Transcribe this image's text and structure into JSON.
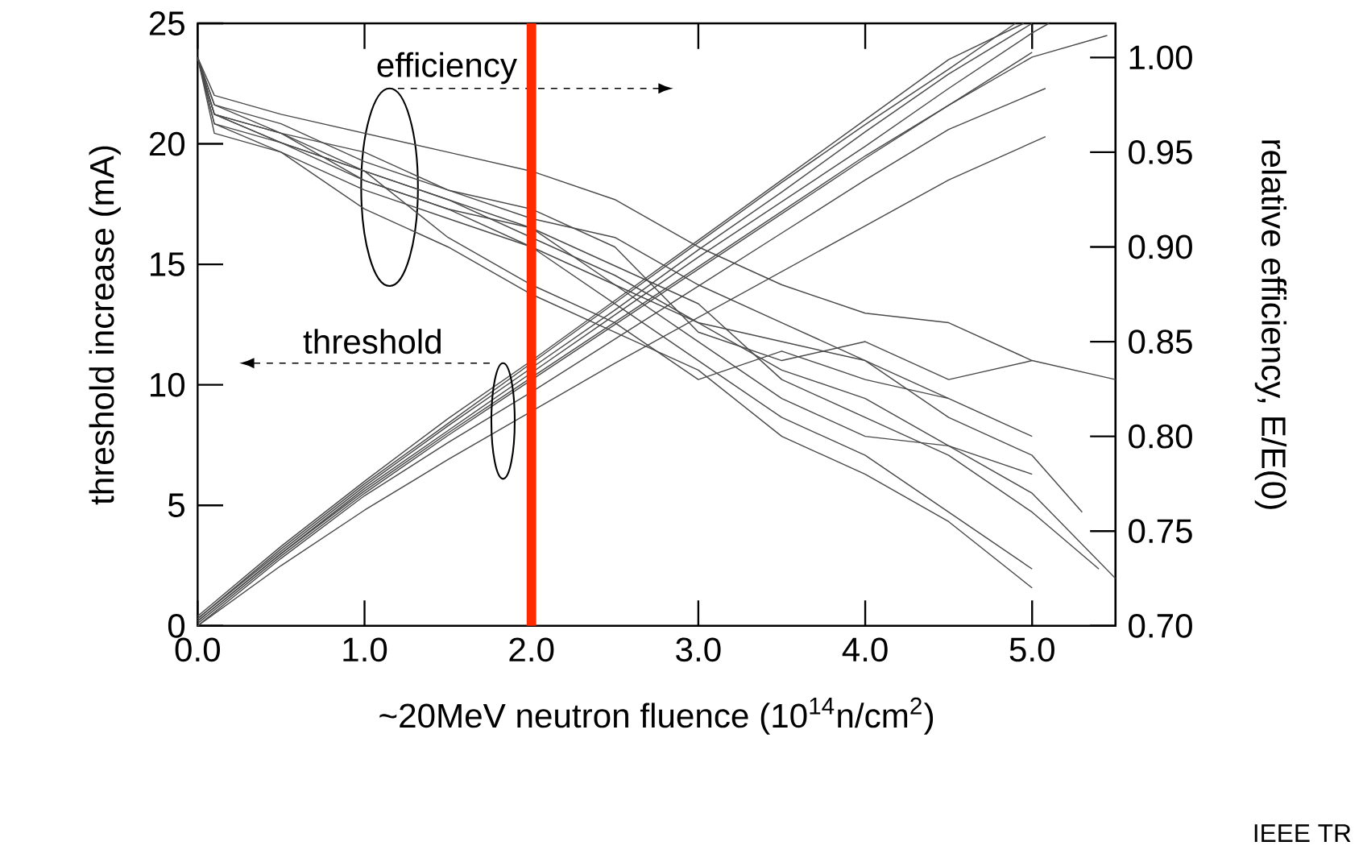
{
  "chart_data": {
    "type": "line",
    "xlabel": "~20MeV neutron fluence (10$^{14}$n/cm$^{2}$)",
    "ylabel": "threshold increase (mA)",
    "y2label": "relative efficiency, E/E(0)",
    "xlim": [
      0,
      5.5
    ],
    "ylim": [
      0,
      25
    ],
    "y2lim": [
      0.7,
      1.018
    ],
    "xticks": [
      {
        "value": 0,
        "label": "0.0"
      },
      {
        "value": 1,
        "label": "1.0"
      },
      {
        "value": 2,
        "label": "2.0"
      },
      {
        "value": 3,
        "label": "3.0"
      },
      {
        "value": 4,
        "label": "4.0"
      },
      {
        "value": 5,
        "label": "5.0"
      }
    ],
    "yticks": [
      0,
      5,
      10,
      15,
      20,
      25
    ],
    "y2ticks": [
      {
        "value": 0.7,
        "label": "0.70"
      },
      {
        "value": 0.75,
        "label": "0.75"
      },
      {
        "value": 0.8,
        "label": "0.80"
      },
      {
        "value": 0.85,
        "label": "0.85"
      },
      {
        "value": 0.9,
        "label": "0.90"
      },
      {
        "value": 0.95,
        "label": "0.95"
      },
      {
        "value": 1.0,
        "label": "1.00"
      }
    ],
    "annotations": [
      "threshold",
      "efficiency",
      "IEEE TR"
    ],
    "ref_lines": [
      {
        "axis": "x",
        "value": 2.0,
        "color": "#ff2a00"
      }
    ],
    "series": [
      {
        "color": "#4a4a4a",
        "x": [
          0,
          0.5,
          1,
          1.5,
          2,
          2.5,
          3,
          3.5,
          4,
          4.5,
          4.9
        ],
        "values": [
          0.3,
          3.2,
          5.9,
          8.4,
          10.9,
          13.4,
          15.9,
          18.4,
          20.8,
          23.1,
          25
        ]
      },
      {
        "color": "#4a4a4a",
        "x": [
          0,
          0.5,
          1,
          1.5,
          2,
          2.5,
          3,
          3.5,
          4,
          4.5,
          5,
          5.1
        ],
        "values": [
          0.2,
          3.0,
          5.7,
          8.1,
          10.5,
          12.9,
          15.3,
          17.6,
          19.9,
          22.3,
          24.6,
          25
        ]
      },
      {
        "color": "#4a4a4a",
        "x": [
          0,
          0.5,
          1,
          1.5,
          2,
          2.5,
          3,
          3.5,
          4,
          4.5,
          5
        ],
        "values": [
          0.1,
          2.9,
          5.5,
          7.9,
          10.2,
          12.5,
          14.8,
          17.1,
          19.4,
          21.6,
          23.8
        ]
      },
      {
        "color": "#4a4a4a",
        "x": [
          0,
          0.5,
          1,
          1.5,
          2,
          2.5,
          3,
          3.5,
          4,
          4.5,
          5.08
        ],
        "values": [
          0,
          2.5,
          4.8,
          6.9,
          8.9,
          10.9,
          12.8,
          14.7,
          16.6,
          18.5,
          20.3
        ]
      },
      {
        "color": "#4a4a4a",
        "x": [
          0,
          0.5,
          1,
          1.5,
          2,
          2.5,
          3,
          3.5,
          4,
          4.5,
          5.08
        ],
        "values": [
          0,
          2.8,
          5.4,
          7.6,
          9.7,
          11.9,
          14.1,
          16.3,
          18.5,
          20.6,
          22.3
        ]
      },
      {
        "color": "#4a4a4a",
        "x": [
          0,
          0.5,
          1,
          1.5,
          2,
          2.5,
          3,
          3.5,
          4,
          4.5,
          4.95
        ],
        "values": [
          0.4,
          3.3,
          6.0,
          8.6,
          11.0,
          13.5,
          16.0,
          18.5,
          21.0,
          23.5,
          25
        ]
      },
      {
        "color": "#4a4a4a",
        "x": [
          0,
          0.5,
          1,
          1.5,
          2,
          2.5,
          3,
          3.5,
          4,
          4.5,
          5,
          5.45
        ],
        "values": [
          0.2,
          3.0,
          5.6,
          8.0,
          10.3,
          12.6,
          14.9,
          17.2,
          19.5,
          21.6,
          23.6,
          24.5
        ]
      },
      {
        "color": "#4a4a4a",
        "x": [
          0,
          0.5,
          1,
          1.5,
          2,
          2.5,
          3,
          3.5,
          4,
          4.5,
          5
        ],
        "values": [
          0.3,
          3.1,
          5.8,
          8.3,
          10.7,
          13.1,
          15.6,
          18.0,
          20.5,
          22.9,
          25
        ]
      },
      {
        "color": "#4a4a4a",
        "axis": "y2",
        "x": [
          0,
          0.1,
          0.5,
          1,
          1.5,
          2,
          2.5,
          3,
          3.5,
          4,
          4.5,
          5,
          5.3
        ],
        "values": [
          1.0,
          0.975,
          0.965,
          0.945,
          0.93,
          0.915,
          0.905,
          0.88,
          0.86,
          0.84,
          0.81,
          0.79,
          0.76
        ]
      },
      {
        "color": "#4a4a4a",
        "axis": "y2",
        "x": [
          0,
          0.1,
          0.5,
          1,
          1.5,
          2,
          2.5,
          3,
          3.5,
          4,
          4.5,
          5,
          5.4
        ],
        "values": [
          1.0,
          0.97,
          0.955,
          0.935,
          0.92,
          0.91,
          0.89,
          0.87,
          0.83,
          0.81,
          0.79,
          0.76,
          0.73
        ]
      },
      {
        "color": "#4a4a4a",
        "axis": "y2",
        "x": [
          0,
          0.1,
          0.5,
          1,
          1.5,
          2,
          2.5,
          3,
          3.5,
          4,
          4.5,
          5,
          5.5
        ],
        "values": [
          1.0,
          0.98,
          0.97,
          0.96,
          0.95,
          0.94,
          0.925,
          0.9,
          0.88,
          0.865,
          0.86,
          0.84,
          0.83
        ]
      },
      {
        "color": "#4a4a4a",
        "axis": "y2",
        "x": [
          0,
          0.1,
          0.5,
          1,
          1.5,
          2,
          2.5,
          3,
          3.5,
          4,
          4.5,
          5
        ],
        "values": [
          1.0,
          0.96,
          0.95,
          0.93,
          0.915,
          0.9,
          0.87,
          0.84,
          0.81,
          0.79,
          0.76,
          0.73
        ]
      },
      {
        "color": "#4a4a4a",
        "axis": "y2",
        "x": [
          0,
          0.1,
          0.5,
          1,
          1.5,
          2,
          2.5,
          3,
          3.5,
          4,
          4.5,
          5
        ],
        "values": [
          1.0,
          0.965,
          0.955,
          0.94,
          0.905,
          0.88,
          0.86,
          0.83,
          0.845,
          0.83,
          0.82,
          0.8
        ]
      },
      {
        "color": "#4a4a4a",
        "axis": "y2",
        "x": [
          0,
          0.1,
          0.5,
          1,
          1.5,
          2,
          2.5,
          3,
          3.5,
          4,
          4.5,
          5,
          5.5
        ],
        "values": [
          1.0,
          0.97,
          0.96,
          0.94,
          0.925,
          0.905,
          0.885,
          0.86,
          0.835,
          0.82,
          0.795,
          0.77,
          0.725
        ]
      },
      {
        "color": "#4a4a4a",
        "axis": "y2",
        "x": [
          0,
          0.1,
          0.5,
          1,
          1.5,
          2,
          2.5,
          3,
          3.5,
          4,
          4.5,
          5
        ],
        "values": [
          1.0,
          0.975,
          0.96,
          0.95,
          0.93,
          0.92,
          0.9,
          0.855,
          0.84,
          0.85,
          0.83,
          0.84
        ]
      },
      {
        "color": "#4a4a4a",
        "axis": "y2",
        "x": [
          0,
          0.1,
          0.5,
          1,
          1.5,
          2,
          2.5,
          3,
          3.5,
          4,
          4.5,
          5
        ],
        "values": [
          1.0,
          0.965,
          0.95,
          0.92,
          0.9,
          0.875,
          0.855,
          0.835,
          0.8,
          0.78,
          0.755,
          0.72
        ]
      },
      {
        "color": "#4a4a4a",
        "axis": "y2",
        "x": [
          0,
          0.1,
          0.5,
          1,
          1.5,
          2,
          2.5,
          3,
          3.5,
          4,
          4.5
        ],
        "values": [
          1.0,
          0.97,
          0.955,
          0.94,
          0.925,
          0.91,
          0.88,
          0.86,
          0.85,
          0.84,
          0.82
        ]
      },
      {
        "color": "#4a4a4a",
        "axis": "y2",
        "x": [
          0,
          0.1,
          0.5,
          1,
          1.5,
          2,
          2.5,
          3,
          3.5,
          4,
          4.5,
          5
        ],
        "values": [
          1.0,
          0.97,
          0.96,
          0.935,
          0.92,
          0.9,
          0.88,
          0.85,
          0.82,
          0.8,
          0.795,
          0.78
        ]
      }
    ]
  }
}
